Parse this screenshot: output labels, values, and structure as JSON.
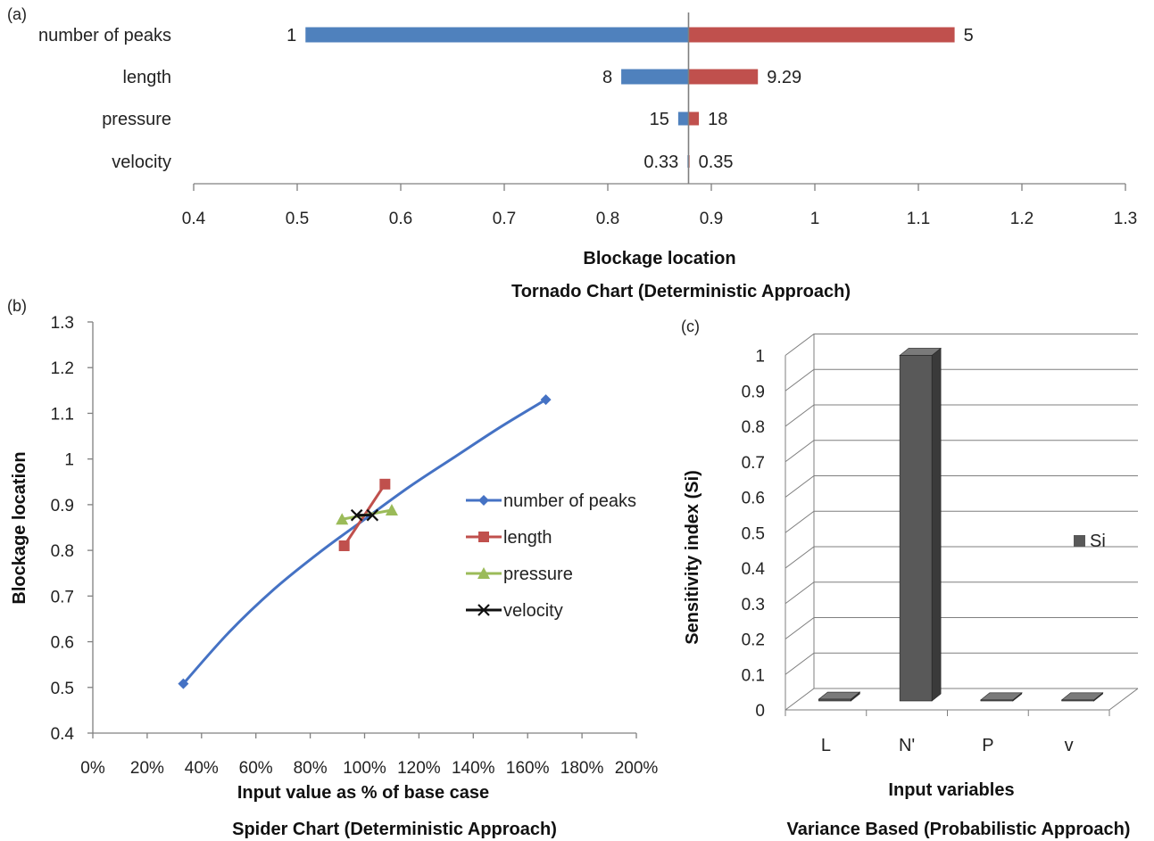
{
  "chart_data": [
    {
      "panel_label": "(a)",
      "type": "bar",
      "orientation": "horizontal",
      "title": "Tornado Chart (Deterministic Approach)",
      "xlabel": "Blockage location",
      "ylabel": "",
      "xlim": [
        0.4,
        1.3
      ],
      "x_ticks": [
        "0.4",
        "0.5",
        "0.6",
        "0.7",
        "0.8",
        "0.9",
        "1",
        "1.1",
        "1.2",
        "1.3"
      ],
      "base_value": 0.878,
      "colors": {
        "low": "#4f81bd",
        "high": "#c0504d",
        "baseline": "#7f7f7f"
      },
      "categories": [
        "number of peaks",
        "length",
        "pressure",
        "velocity"
      ],
      "low_values": [
        0.508,
        0.813,
        0.868,
        0.877
      ],
      "high_values": [
        1.135,
        0.945,
        0.888,
        0.879
      ],
      "low_labels": [
        "1",
        "8",
        "15",
        "0.33"
      ],
      "high_labels": [
        "5",
        "9.29",
        "18",
        "0.35"
      ]
    },
    {
      "panel_label": "(b)",
      "type": "line",
      "title": "Spider Chart (Deterministic Approach)",
      "xlabel": "Input value as % of base case",
      "ylabel": "Blockage location",
      "xlim": [
        0,
        200
      ],
      "ylim": [
        0.4,
        1.3
      ],
      "x_ticks": [
        "0%",
        "20%",
        "40%",
        "60%",
        "80%",
        "100%",
        "120%",
        "140%",
        "160%",
        "180%",
        "200%"
      ],
      "y_ticks": [
        "0.4",
        "0.5",
        "0.6",
        "0.7",
        "0.8",
        "0.9",
        "1",
        "1.1",
        "1.2",
        "1.3"
      ],
      "legend_position": "right",
      "series": [
        {
          "name": "number of peaks",
          "color": "#4572c4",
          "marker": "diamond",
          "smooth": true,
          "marked": [
            [
              33.3,
              0.508
            ],
            [
              166.7,
              1.13
            ]
          ],
          "x": [
            33.3,
            50,
            66.7,
            83.3,
            100,
            116.7,
            133.3,
            150,
            166.7
          ],
          "y": [
            0.508,
            0.62,
            0.715,
            0.795,
            0.868,
            0.94,
            1.005,
            1.07,
            1.13
          ]
        },
        {
          "name": "length",
          "color": "#c0504d",
          "marker": "square",
          "smooth": false,
          "marked": [
            [
              92.5,
              0.81
            ],
            [
              107.5,
              0.945
            ]
          ],
          "x": [
            92.5,
            107.5
          ],
          "y": [
            0.81,
            0.945
          ]
        },
        {
          "name": "pressure",
          "color": "#9bbb59",
          "marker": "triangle",
          "smooth": false,
          "marked": [
            [
              91.7,
              0.868
            ],
            [
              110,
              0.888
            ]
          ],
          "x": [
            91.7,
            110
          ],
          "y": [
            0.868,
            0.888
          ]
        },
        {
          "name": "velocity",
          "color": "#111111",
          "marker": "x",
          "smooth": false,
          "marked": [
            [
              97.1,
              0.877
            ],
            [
              102.9,
              0.877
            ]
          ],
          "x": [
            97.1,
            102.9
          ],
          "y": [
            0.877,
            0.877
          ]
        }
      ]
    },
    {
      "panel_label": "(c)",
      "type": "bar",
      "style": "3d-column",
      "title": "Variance Based (Probabilistic Approach)",
      "xlabel": "Input variables",
      "ylabel": "Sensitivity index (Si)",
      "ylim": [
        0,
        1
      ],
      "y_ticks": [
        "0",
        "0.1",
        "0.2",
        "0.3",
        "0.4",
        "0.5",
        "0.6",
        "0.7",
        "0.8",
        "0.9",
        "1"
      ],
      "categories": [
        "L",
        "N'",
        "P",
        "v"
      ],
      "series": [
        {
          "name": "Si",
          "color": "#595959",
          "values": [
            0.005,
            0.975,
            0.003,
            0.003
          ]
        }
      ],
      "legend_position": "right"
    }
  ]
}
